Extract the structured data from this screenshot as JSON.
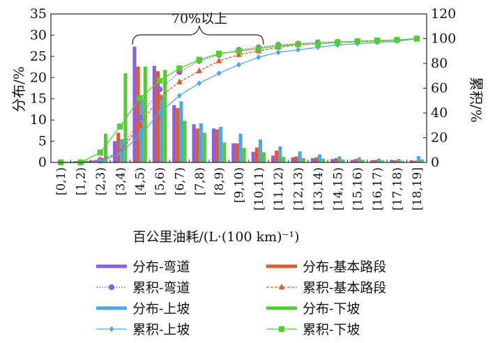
{
  "chart_data": {
    "type": "bar",
    "annotation": "70%以上",
    "xlabel": "百公里油耗/(L·(100 km)⁻¹)",
    "ylabel_left": "分布/%",
    "ylabel_right": "累积/%",
    "ylim_left": [
      0,
      35
    ],
    "ylim_right": [
      0,
      120
    ],
    "yticks_left": [
      "0",
      "5",
      "10",
      "15",
      "20",
      "25",
      "30",
      "35"
    ],
    "yticks_right": [
      "0",
      "20",
      "40",
      "60",
      "80",
      "100",
      "120"
    ],
    "categories": [
      "[0,1)",
      "[1,2)",
      "[2,3)",
      "[3,4)",
      "[4,5)",
      "[5,6)",
      "[6,7)",
      "[7,8)",
      "[8,9)",
      "[9,10)",
      "[10,11)",
      "[11,12)",
      "[12,13)",
      "[13,14)",
      "[14,15)",
      "[15,16)",
      "[16,17)",
      "[17,18)",
      "[18,19]"
    ],
    "distribution_series": [
      {
        "name": "分布-弯道",
        "color": "#8a5fe0",
        "values": [
          0.1,
          0.3,
          0.5,
          5.0,
          27.3,
          22.8,
          13.5,
          9.0,
          8.0,
          4.5,
          2.5,
          1.6,
          1.2,
          1.0,
          0.8,
          0.6,
          0.5,
          0.6,
          0.5
        ]
      },
      {
        "name": "分布-基本路段",
        "color": "#e25a2c",
        "values": [
          0.1,
          0.2,
          0.5,
          7.0,
          22.6,
          21.5,
          12.8,
          8.0,
          7.8,
          4.5,
          3.5,
          2.8,
          1.4,
          1.2,
          1.0,
          0.8,
          0.6,
          0.5,
          0.4
        ]
      },
      {
        "name": "分布-上坡",
        "color": "#4da6e6",
        "values": [
          0.1,
          0.2,
          1.0,
          5.5,
          15.0,
          15.8,
          14.4,
          9.2,
          8.4,
          6.8,
          5.4,
          3.8,
          2.6,
          1.9,
          1.4,
          1.2,
          0.9,
          0.8,
          1.5
        ]
      },
      {
        "name": "分布-下坡",
        "color": "#55cc33",
        "values": [
          0.1,
          0.4,
          6.8,
          21.0,
          22.6,
          21.8,
          9.8,
          7.0,
          4.7,
          3.4,
          2.4,
          1.3,
          1.0,
          0.9,
          0.7,
          0.6,
          0.5,
          0.4,
          0.7
        ]
      }
    ],
    "cumulative_series": [
      {
        "name": "累积-弯道",
        "color": "#8a5fe0",
        "marker": "circle",
        "dash": "2,2",
        "values": [
          0,
          0,
          2,
          8,
          36,
          59,
          73,
          82,
          87,
          91,
          93,
          95,
          96,
          97,
          97.5,
          98,
          98.5,
          99,
          100
        ]
      },
      {
        "name": "累积-基本路段",
        "color": "#e25a2c",
        "marker": "triangle",
        "dash": "4,2",
        "values": [
          0,
          0,
          2,
          8,
          30,
          53,
          65,
          74,
          82,
          87,
          90,
          93,
          95,
          96,
          97,
          97.5,
          98,
          99,
          100
        ]
      },
      {
        "name": "累积-上坡",
        "color": "#4da6e6",
        "marker": "diamond",
        "dash": "none",
        "values": [
          0,
          0,
          1,
          7,
          22,
          40,
          54,
          64,
          72,
          79,
          85,
          89,
          91,
          93,
          95,
          96,
          97,
          98,
          100
        ]
      },
      {
        "name": "累积-下坡",
        "color": "#55cc33",
        "marker": "square",
        "dash": "none",
        "values": [
          0,
          0,
          8,
          29,
          52,
          66,
          76,
          83,
          88,
          90,
          92,
          94,
          95.5,
          96,
          97,
          98,
          98.5,
          99,
          100
        ]
      }
    ]
  }
}
